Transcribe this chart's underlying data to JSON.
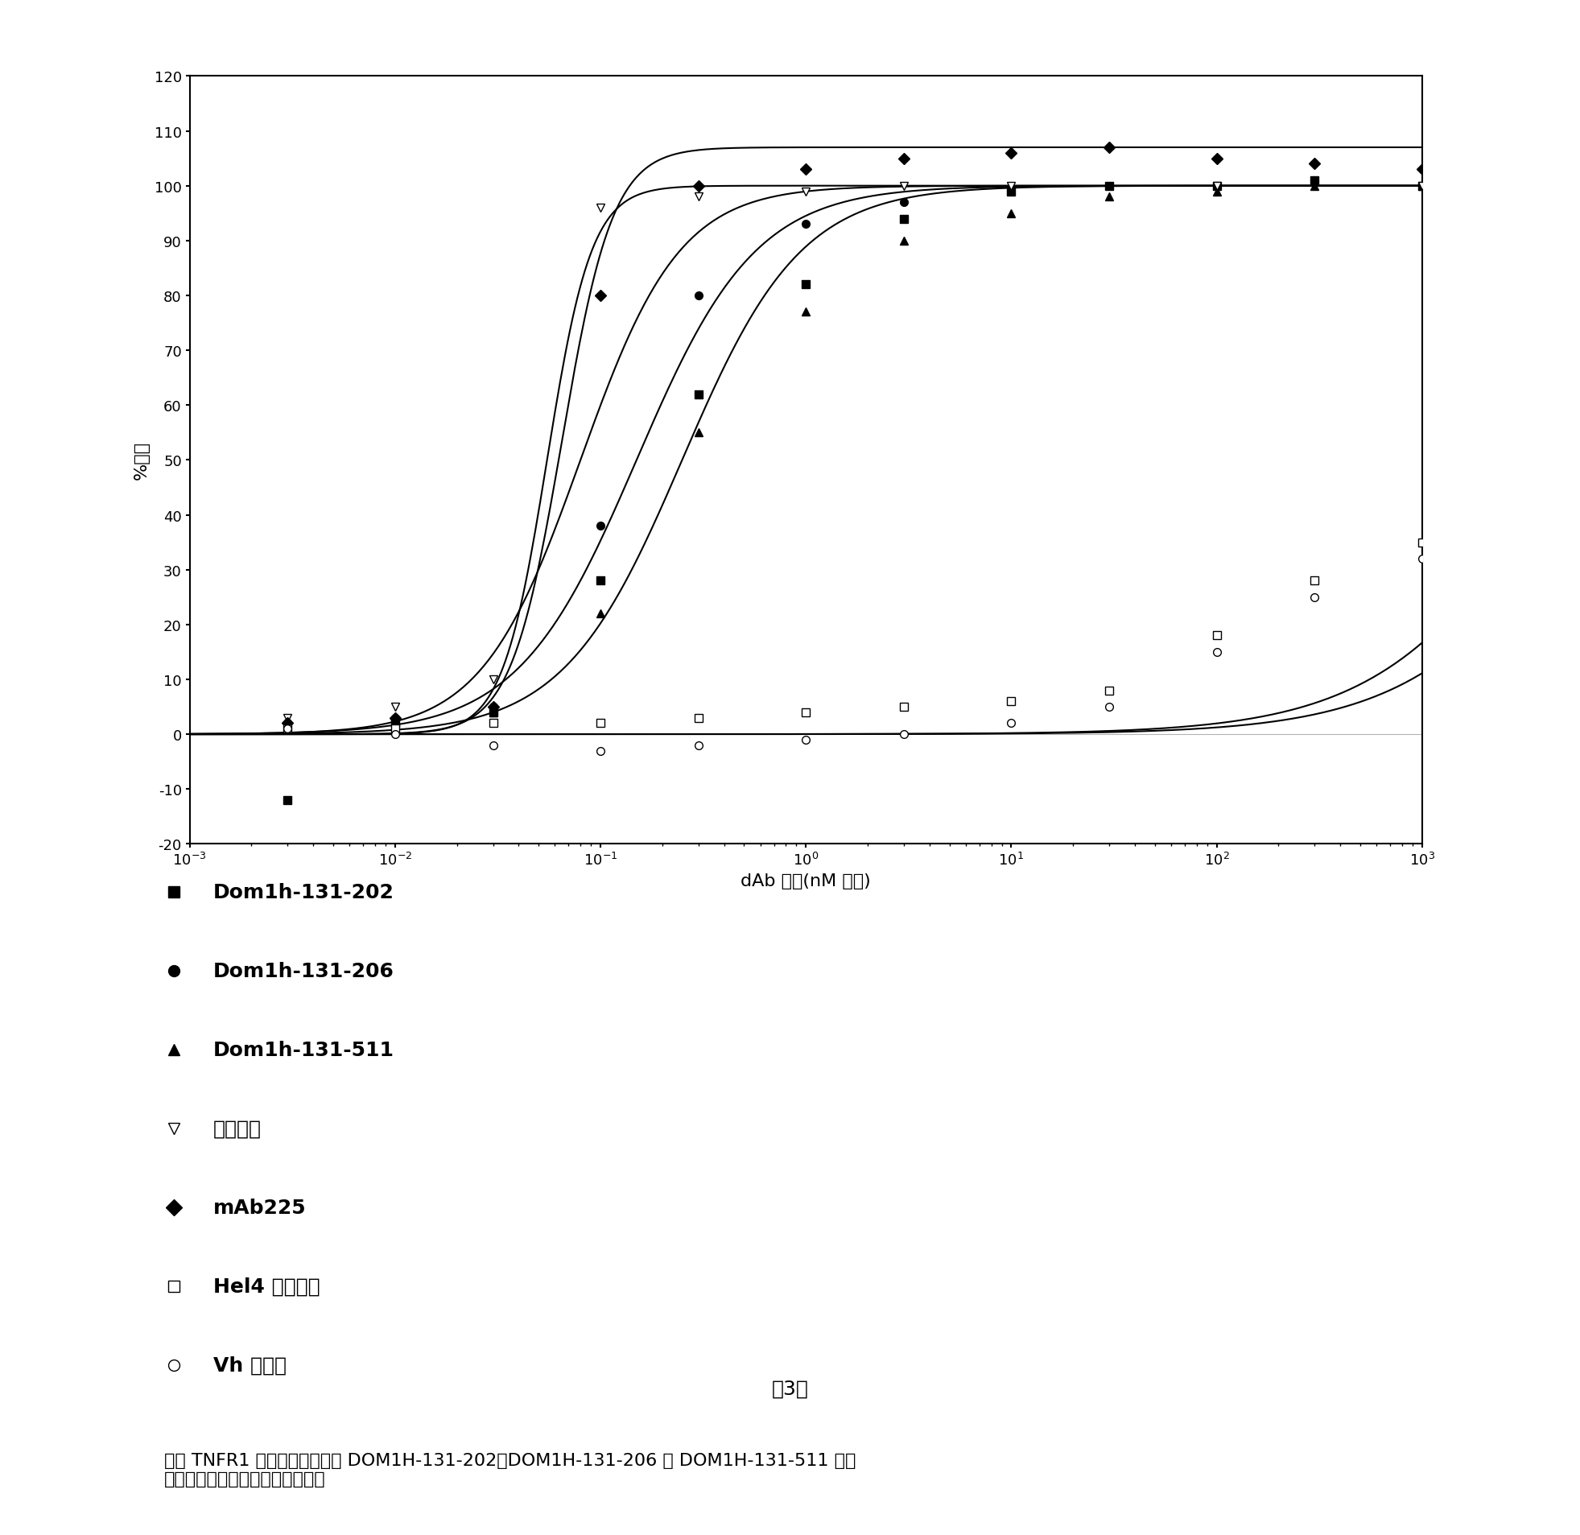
{
  "title": "",
  "xlabel": "dAb 浓度(nM 样品)",
  "ylabel": "%抑制",
  "xlim": [
    0.001,
    1000
  ],
  "ylim": [
    -20,
    120
  ],
  "yticks": [
    -20,
    -10,
    0,
    10,
    20,
    30,
    40,
    50,
    60,
    70,
    80,
    90,
    100,
    110,
    120
  ],
  "caption_title": "图3：",
  "caption_body": "在人 TNFR1 受体结合测定中的 DOM1H-131-202、DOM1H-131-206 和 DOM1H-131-511 的抑\n制作用。每一样品一式四份测试。",
  "series": [
    {
      "name": "Dom1h-131-202",
      "marker": "s",
      "color": "black",
      "fillstyle": "full",
      "x_data": [
        0.003,
        0.01,
        0.03,
        0.1,
        0.3,
        1.0,
        3.0,
        10.0,
        30.0,
        100.0,
        300.0,
        1000.0
      ],
      "y_data": [
        -12.0,
        2.0,
        4.0,
        28.0,
        62.0,
        82.0,
        94.0,
        99.0,
        100.0,
        100.0,
        101.0,
        100.0
      ],
      "ec50": 0.15,
      "top": 100,
      "bottom": 0,
      "hill": 1.5
    },
    {
      "name": "Dom1h-131-206",
      "marker": "o",
      "color": "black",
      "fillstyle": "full",
      "x_data": [
        0.003,
        0.01,
        0.03,
        0.1,
        0.3,
        1.0,
        3.0,
        10.0,
        30.0,
        100.0,
        300.0,
        1000.0
      ],
      "y_data": [
        2.0,
        3.0,
        5.0,
        38.0,
        80.0,
        93.0,
        97.0,
        99.0,
        100.0,
        100.0,
        101.0,
        100.0
      ],
      "ec50": 0.08,
      "top": 100,
      "bottom": 0,
      "hill": 1.8
    },
    {
      "name": "Dom1h-131-511",
      "marker": "^",
      "color": "black",
      "fillstyle": "full",
      "x_data": [
        0.003,
        0.01,
        0.03,
        0.1,
        0.3,
        1.0,
        3.0,
        10.0,
        30.0,
        100.0,
        300.0,
        1000.0
      ],
      "y_data": [
        2.0,
        2.0,
        4.0,
        22.0,
        55.0,
        77.0,
        90.0,
        95.0,
        98.0,
        99.0,
        100.0,
        100.0
      ],
      "ec50": 0.25,
      "top": 100,
      "bottom": 0,
      "hill": 1.5
    },
    {
      "name": "阳性对照",
      "marker": "v",
      "color": "black",
      "fillstyle": "none",
      "x_data": [
        0.003,
        0.01,
        0.03,
        0.1,
        0.3,
        1.0,
        3.0,
        10.0,
        100.0,
        1000.0
      ],
      "y_data": [
        3.0,
        5.0,
        10.0,
        96.0,
        98.0,
        99.0,
        100.0,
        100.0,
        100.0,
        100.0
      ],
      "ec50": 0.055,
      "top": 100,
      "bottom": 0,
      "hill": 4.0
    },
    {
      "name": "mAb225",
      "marker": "D",
      "color": "black",
      "fillstyle": "full",
      "x_data": [
        0.003,
        0.01,
        0.03,
        0.1,
        0.3,
        1.0,
        3.0,
        10.0,
        30.0,
        100.0,
        300.0,
        1000.0
      ],
      "y_data": [
        2.0,
        3.0,
        5.0,
        80.0,
        100.0,
        103.0,
        105.0,
        106.0,
        107.0,
        105.0,
        104.0,
        103.0
      ],
      "ec50": 0.065,
      "top": 107,
      "bottom": 0,
      "hill": 3.5
    },
    {
      "name": "Hel4 阴性对照",
      "marker": "s",
      "color": "black",
      "fillstyle": "none",
      "x_data": [
        0.003,
        0.01,
        0.03,
        0.1,
        0.3,
        1.0,
        3.0,
        10.0,
        30.0,
        100.0,
        300.0,
        1000.0
      ],
      "y_data": [
        1.0,
        1.0,
        2.0,
        2.0,
        3.0,
        4.0,
        5.0,
        6.0,
        8.0,
        18.0,
        28.0,
        35.0
      ],
      "ec50": 5000,
      "top": 100,
      "bottom": 0,
      "hill": 1.0
    },
    {
      "name": "Vh 模拟物",
      "marker": "o",
      "color": "black",
      "fillstyle": "none",
      "x_data": [
        0.003,
        0.01,
        0.03,
        0.1,
        0.3,
        1.0,
        3.0,
        10.0,
        30.0,
        100.0,
        300.0,
        1000.0
      ],
      "y_data": [
        1.0,
        0.0,
        -2.0,
        -3.0,
        -2.0,
        -1.0,
        0.0,
        2.0,
        5.0,
        15.0,
        25.0,
        32.0
      ],
      "ec50": 8000,
      "top": 100,
      "bottom": 0,
      "hill": 1.0
    }
  ],
  "legend_entries": [
    {
      "label": "Dom1h-131-202",
      "marker": "s",
      "fillstyle": "full"
    },
    {
      "label": "Dom1h-131-206",
      "marker": "o",
      "fillstyle": "full"
    },
    {
      "label": "Dom1h-131-511",
      "marker": "^",
      "fillstyle": "full"
    },
    {
      "label": "阳性对照",
      "marker": "v",
      "fillstyle": "none"
    },
    {
      "label": "mAb225",
      "marker": "D",
      "fillstyle": "full"
    },
    {
      "label": "Hel4 阴性对照",
      "marker": "s",
      "fillstyle": "none"
    },
    {
      "label": "Vh 模拟物",
      "marker": "o",
      "fillstyle": "none"
    }
  ]
}
